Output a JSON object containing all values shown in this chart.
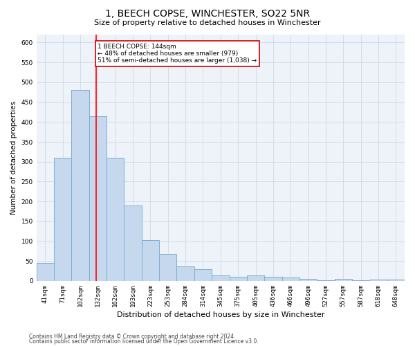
{
  "title": "1, BEECH COPSE, WINCHESTER, SO22 5NR",
  "subtitle": "Size of property relative to detached houses in Winchester",
  "xlabel": "Distribution of detached houses by size in Winchester",
  "ylabel": "Number of detached properties",
  "categories": [
    "41sqm",
    "71sqm",
    "102sqm",
    "132sqm",
    "162sqm",
    "193sqm",
    "223sqm",
    "253sqm",
    "284sqm",
    "314sqm",
    "345sqm",
    "375sqm",
    "405sqm",
    "436sqm",
    "466sqm",
    "496sqm",
    "527sqm",
    "557sqm",
    "587sqm",
    "618sqm",
    "648sqm"
  ],
  "values": [
    45,
    310,
    480,
    415,
    310,
    190,
    103,
    68,
    37,
    30,
    13,
    10,
    13,
    11,
    8,
    5,
    2,
    5,
    2,
    3,
    3
  ],
  "bar_color": "#c5d8ed",
  "bar_edge_color": "#7bafd4",
  "ylim": [
    0,
    620
  ],
  "yticks": [
    0,
    50,
    100,
    150,
    200,
    250,
    300,
    350,
    400,
    450,
    500,
    550,
    600
  ],
  "annotation_text": "1 BEECH COPSE: 144sqm\n← 48% of detached houses are smaller (979)\n51% of semi-detached houses are larger (1,038) →",
  "annotation_box_color": "#ffffff",
  "annotation_box_edge": "#cc0000",
  "grid_color": "#d0d8e8",
  "footer_line1": "Contains HM Land Registry data © Crown copyright and database right 2024.",
  "footer_line2": "Contains public sector information licensed under the Open Government Licence v3.0.",
  "bg_color": "#ffffff",
  "plot_bg_color": "#eef2f9",
  "title_fontsize": 10,
  "subtitle_fontsize": 8,
  "xlabel_fontsize": 8,
  "ylabel_fontsize": 7.5,
  "tick_fontsize": 6.5,
  "annotation_fontsize": 6.5,
  "footer_fontsize": 5.5
}
